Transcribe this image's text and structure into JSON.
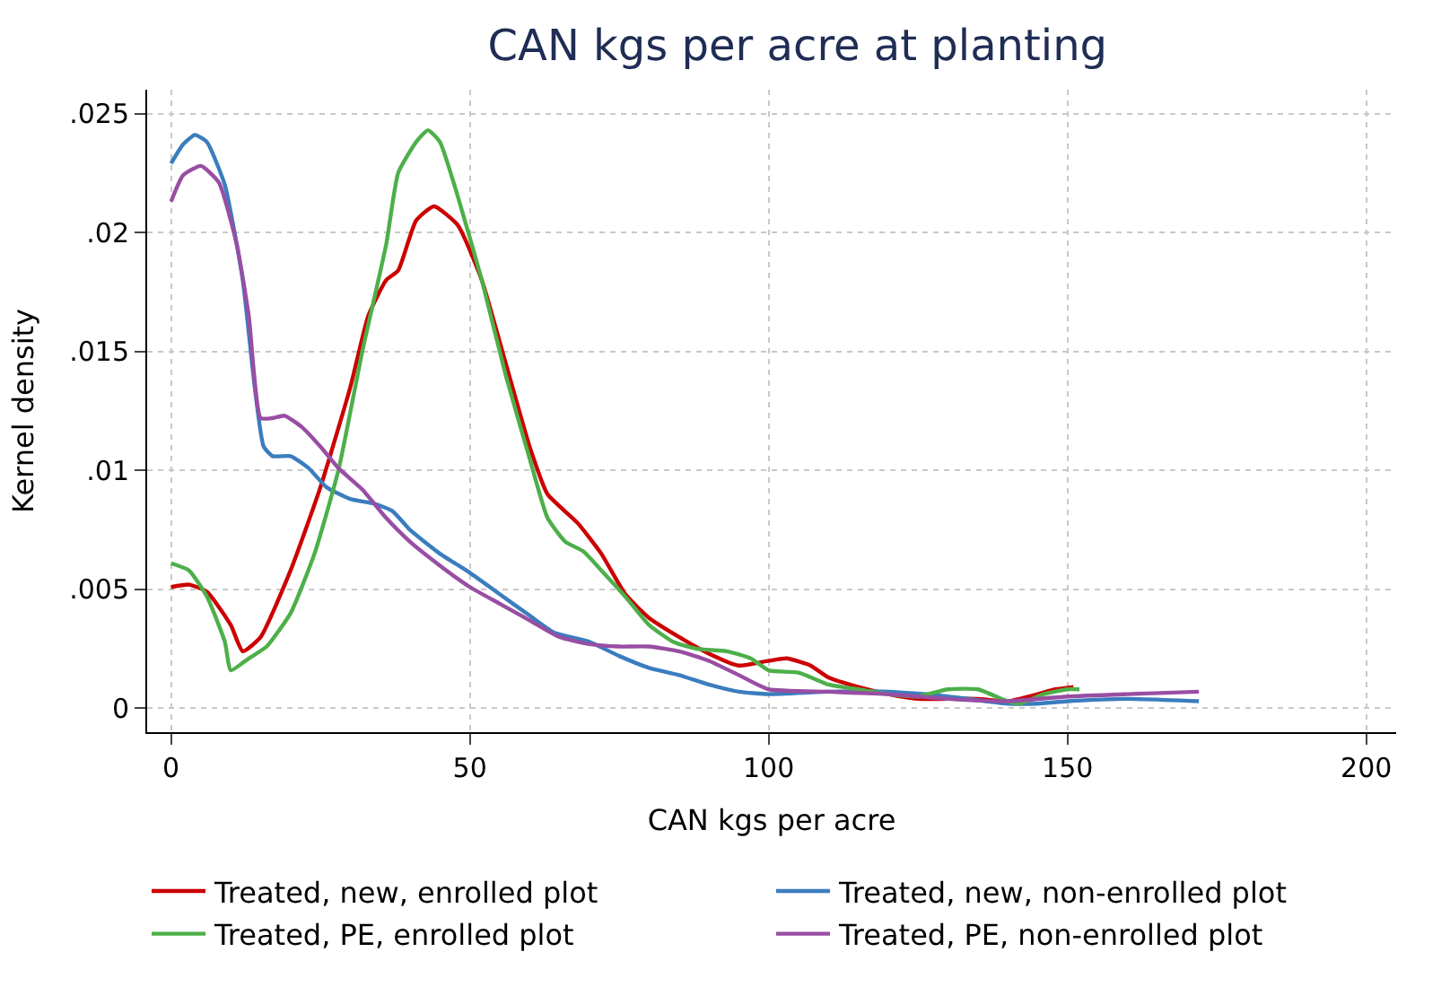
{
  "chart_data": {
    "type": "line",
    "title": "CAN kgs per acre at planting",
    "xlabel": "CAN kgs per acre",
    "ylabel": "Kernel density",
    "xlim": [
      -4,
      205
    ],
    "xticks": [
      0,
      50,
      100,
      150,
      200
    ],
    "ylim": [
      -0.001,
      0.026
    ],
    "yticks": [
      {
        "value": 0,
        "label": "0"
      },
      {
        "value": 0.005,
        "label": ".005"
      },
      {
        "value": 0.01,
        "label": ".01"
      },
      {
        "value": 0.015,
        "label": ".015"
      },
      {
        "value": 0.02,
        "label": ".02"
      },
      {
        "value": 0.025,
        "label": ".025"
      }
    ],
    "grid": true,
    "legend": "bottom",
    "marker": "none",
    "line_style": "solid",
    "series": [
      {
        "name": "Treated, new, enrolled plot",
        "color": "#cc0000",
        "x": [
          0,
          3,
          6,
          10,
          12,
          15,
          20,
          25,
          30,
          33,
          36,
          38,
          41,
          44,
          48,
          52,
          56,
          60,
          63,
          68,
          72,
          76,
          80,
          85,
          90,
          95,
          100,
          103,
          107,
          110,
          115,
          120,
          125,
          130,
          135,
          140,
          145,
          148,
          151
        ],
        "values": [
          0.0051,
          0.0052,
          0.0049,
          0.0035,
          0.0024,
          0.003,
          0.0058,
          0.0093,
          0.0135,
          0.0165,
          0.018,
          0.0184,
          0.0205,
          0.0211,
          0.0203,
          0.018,
          0.0145,
          0.011,
          0.009,
          0.0078,
          0.0065,
          0.0048,
          0.0038,
          0.003,
          0.0023,
          0.0018,
          0.002,
          0.0021,
          0.0018,
          0.0013,
          0.0009,
          0.0006,
          0.0004,
          0.0004,
          0.0004,
          0.0003,
          0.0006,
          0.0008,
          0.0009
        ]
      },
      {
        "name": "Treated, new, non-enrolled plot",
        "color": "#3a7dbf",
        "x": [
          0,
          2,
          4,
          6,
          9,
          12,
          14,
          15.5,
          17,
          20,
          23,
          26,
          30,
          34,
          37,
          40,
          45,
          50,
          55,
          60,
          64,
          70,
          75,
          80,
          85,
          90,
          95,
          100,
          110,
          120,
          130,
          140,
          145,
          150,
          160,
          172
        ],
        "values": [
          0.0229,
          0.0237,
          0.0241,
          0.0238,
          0.022,
          0.018,
          0.0135,
          0.011,
          0.0106,
          0.0106,
          0.0101,
          0.0093,
          0.0088,
          0.0086,
          0.0083,
          0.0075,
          0.0065,
          0.0057,
          0.0048,
          0.0039,
          0.0032,
          0.0028,
          0.0022,
          0.0017,
          0.0014,
          0.001,
          0.0007,
          0.0006,
          0.0007,
          0.0007,
          0.0005,
          0.0002,
          0.0002,
          0.0003,
          0.0004,
          0.0003
        ]
      },
      {
        "name": "Treated, PE, enrolled plot",
        "color": "#4daf4a",
        "x": [
          0,
          3,
          6,
          9,
          10,
          13,
          16,
          20,
          24,
          28,
          32,
          36,
          38,
          41,
          43,
          45,
          48,
          52,
          56,
          60,
          63,
          66,
          69,
          72,
          76,
          80,
          84,
          88,
          93,
          97,
          100,
          105,
          110,
          115,
          120,
          125,
          130,
          135,
          140,
          142,
          146,
          150,
          152
        ],
        "values": [
          0.0061,
          0.0058,
          0.0047,
          0.0028,
          0.0016,
          0.0021,
          0.0026,
          0.004,
          0.0065,
          0.01,
          0.015,
          0.0195,
          0.0225,
          0.0238,
          0.0243,
          0.0238,
          0.0215,
          0.018,
          0.014,
          0.0105,
          0.008,
          0.007,
          0.0066,
          0.0058,
          0.0047,
          0.0035,
          0.0028,
          0.0025,
          0.0024,
          0.0021,
          0.0016,
          0.0015,
          0.001,
          0.0008,
          0.0006,
          0.0005,
          0.0008,
          0.0008,
          0.0003,
          0.0002,
          0.0006,
          0.0008,
          0.0008
        ]
      },
      {
        "name": "Treated, PE, non-enrolled plot",
        "color": "#984ea3",
        "x": [
          0,
          2,
          5,
          8,
          11,
          13,
          15,
          17,
          19,
          22,
          25,
          28,
          32,
          36,
          40,
          45,
          50,
          55,
          60,
          65,
          70,
          75,
          80,
          85,
          90,
          95,
          100,
          110,
          120,
          130,
          140,
          150,
          160,
          172
        ],
        "values": [
          0.0213,
          0.0224,
          0.0228,
          0.0221,
          0.0195,
          0.0165,
          0.0122,
          0.0122,
          0.0123,
          0.0118,
          0.011,
          0.0101,
          0.0092,
          0.008,
          0.007,
          0.006,
          0.0051,
          0.0044,
          0.0037,
          0.003,
          0.0027,
          0.0026,
          0.0026,
          0.0024,
          0.002,
          0.0014,
          0.0008,
          0.0007,
          0.0006,
          0.0004,
          0.0003,
          0.0005,
          0.0006,
          0.0007
        ]
      }
    ]
  }
}
